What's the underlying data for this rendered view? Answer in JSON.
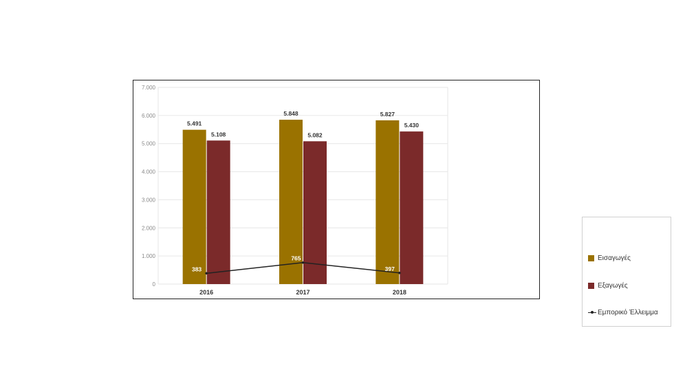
{
  "chart_data": {
    "type": "bar",
    "categories": [
      "2016",
      "2017",
      "2018"
    ],
    "series": [
      {
        "name": "Εισαγωγές",
        "type": "bar",
        "values": [
          5491,
          5848,
          5827
        ],
        "labels": [
          "5.491",
          "5.848",
          "5.827"
        ],
        "color": "#9a7200"
      },
      {
        "name": "Εξαγωγές",
        "type": "bar",
        "values": [
          5108,
          5082,
          5430
        ],
        "labels": [
          "5.108",
          "5.082",
          "5.430"
        ],
        "color": "#7b2a2a"
      },
      {
        "name": "Εμπορικό Έλλειμμα",
        "type": "line",
        "values": [
          383,
          765,
          397
        ],
        "labels": [
          "383",
          "765",
          "397"
        ],
        "color": "#222222"
      }
    ],
    "ylim": [
      0,
      7000
    ],
    "yticks": [
      0,
      1000,
      2000,
      3000,
      4000,
      5000,
      6000,
      7000
    ],
    "ytick_labels": [
      "0",
      "1.000",
      "2.000",
      "3.000",
      "4.000",
      "5.000",
      "6.000",
      "7.000"
    ],
    "grid": true,
    "legend_position": "right"
  }
}
